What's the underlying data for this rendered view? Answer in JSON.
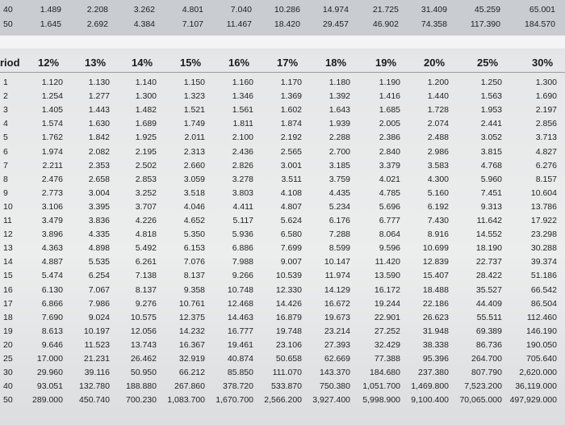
{
  "top_rows": [
    {
      "period": "40",
      "values": [
        "1.489",
        "2.208",
        "3.262",
        "4.801",
        "7.040",
        "10.286",
        "14.974",
        "21.725",
        "31.409",
        "45.259",
        "65.001"
      ]
    },
    {
      "period": "50",
      "values": [
        "1.645",
        "2.692",
        "4.384",
        "7.107",
        "11.467",
        "18.420",
        "29.457",
        "46.902",
        "74.358",
        "117.390",
        "184.570"
      ]
    }
  ],
  "header": {
    "period_label": "riod",
    "rates": [
      "12%",
      "13%",
      "14%",
      "15%",
      "16%",
      "17%",
      "18%",
      "19%",
      "20%",
      "25%",
      "30%"
    ]
  },
  "rows": [
    {
      "period": "1",
      "values": [
        "1.120",
        "1.130",
        "1.140",
        "1.150",
        "1.160",
        "1.170",
        "1.180",
        "1.190",
        "1.200",
        "1.250",
        "1.300"
      ]
    },
    {
      "period": "2",
      "values": [
        "1.254",
        "1.277",
        "1.300",
        "1.323",
        "1.346",
        "1.369",
        "1.392",
        "1.416",
        "1.440",
        "1.563",
        "1.690"
      ]
    },
    {
      "period": "3",
      "values": [
        "1.405",
        "1.443",
        "1.482",
        "1.521",
        "1.561",
        "1.602",
        "1.643",
        "1.685",
        "1.728",
        "1.953",
        "2.197"
      ]
    },
    {
      "period": "4",
      "values": [
        "1.574",
        "1.630",
        "1.689",
        "1.749",
        "1.811",
        "1.874",
        "1.939",
        "2.005",
        "2.074",
        "2.441",
        "2.856"
      ]
    },
    {
      "period": "5",
      "values": [
        "1.762",
        "1.842",
        "1.925",
        "2.011",
        "2.100",
        "2.192",
        "2.288",
        "2.386",
        "2.488",
        "3.052",
        "3.713"
      ]
    },
    {
      "period": "6",
      "values": [
        "1.974",
        "2.082",
        "2.195",
        "2.313",
        "2.436",
        "2.565",
        "2.700",
        "2.840",
        "2.986",
        "3.815",
        "4.827"
      ]
    },
    {
      "period": "7",
      "values": [
        "2.211",
        "2.353",
        "2.502",
        "2.660",
        "2.826",
        "3.001",
        "3.185",
        "3.379",
        "3.583",
        "4.768",
        "6.276"
      ]
    },
    {
      "period": "8",
      "values": [
        "2.476",
        "2.658",
        "2.853",
        "3.059",
        "3.278",
        "3.511",
        "3.759",
        "4.021",
        "4.300",
        "5.960",
        "8.157"
      ]
    },
    {
      "period": "9",
      "values": [
        "2.773",
        "3.004",
        "3.252",
        "3.518",
        "3.803",
        "4.108",
        "4.435",
        "4.785",
        "5.160",
        "7.451",
        "10.604"
      ]
    },
    {
      "period": "10",
      "values": [
        "3.106",
        "3.395",
        "3.707",
        "4.046",
        "4.411",
        "4.807",
        "5.234",
        "5.696",
        "6.192",
        "9.313",
        "13.786"
      ]
    },
    {
      "period": "11",
      "values": [
        "3.479",
        "3.836",
        "4.226",
        "4.652",
        "5.117",
        "5.624",
        "6.176",
        "6.777",
        "7.430",
        "11.642",
        "17.922"
      ]
    },
    {
      "period": "12",
      "values": [
        "3.896",
        "4.335",
        "4.818",
        "5.350",
        "5.936",
        "6.580",
        "7.288",
        "8.064",
        "8.916",
        "14.552",
        "23.298"
      ]
    },
    {
      "period": "13",
      "values": [
        "4.363",
        "4.898",
        "5.492",
        "6.153",
        "6.886",
        "7.699",
        "8.599",
        "9.596",
        "10.699",
        "18.190",
        "30.288"
      ]
    },
    {
      "period": "14",
      "values": [
        "4.887",
        "5.535",
        "6.261",
        "7.076",
        "7.988",
        "9.007",
        "10.147",
        "11.420",
        "12.839",
        "22.737",
        "39.374"
      ]
    },
    {
      "period": "15",
      "values": [
        "5.474",
        "6.254",
        "7.138",
        "8.137",
        "9.266",
        "10.539",
        "11.974",
        "13.590",
        "15.407",
        "28.422",
        "51.186"
      ]
    },
    {
      "period": "16",
      "values": [
        "6.130",
        "7.067",
        "8.137",
        "9.358",
        "10.748",
        "12.330",
        "14.129",
        "16.172",
        "18.488",
        "35.527",
        "66.542"
      ]
    },
    {
      "period": "17",
      "values": [
        "6.866",
        "7.986",
        "9.276",
        "10.761",
        "12.468",
        "14.426",
        "16.672",
        "19.244",
        "22.186",
        "44.409",
        "86.504"
      ]
    },
    {
      "period": "18",
      "values": [
        "7.690",
        "9.024",
        "10.575",
        "12.375",
        "14.463",
        "16.879",
        "19.673",
        "22.901",
        "26.623",
        "55.511",
        "112.460"
      ]
    },
    {
      "period": "19",
      "values": [
        "8.613",
        "10.197",
        "12.056",
        "14.232",
        "16.777",
        "19.748",
        "23.214",
        "27.252",
        "31.948",
        "69.389",
        "146.190"
      ]
    },
    {
      "period": "20",
      "values": [
        "9.646",
        "11.523",
        "13.743",
        "16.367",
        "19.461",
        "23.106",
        "27.393",
        "32.429",
        "38.338",
        "86.736",
        "190.050"
      ]
    },
    {
      "period": "25",
      "values": [
        "17.000",
        "21.231",
        "26.462",
        "32.919",
        "40.874",
        "50.658",
        "62.669",
        "77.388",
        "95.396",
        "264.700",
        "705.640"
      ]
    },
    {
      "period": "30",
      "values": [
        "29.960",
        "39.116",
        "50.950",
        "66.212",
        "85.850",
        "111.070",
        "143.370",
        "184.680",
        "237.380",
        "807.790",
        "2,620.000"
      ]
    },
    {
      "period": "40",
      "values": [
        "93.051",
        "132.780",
        "188.880",
        "267.860",
        "378.720",
        "533.870",
        "750.380",
        "1,051.700",
        "1,469.800",
        "7,523.200",
        "36,119.000"
      ]
    },
    {
      "period": "50",
      "values": [
        "289.000",
        "450.740",
        "700.230",
        "1,083.700",
        "1,670.700",
        "2,566.200",
        "3,927.400",
        "5,998.900",
        "9,100.400",
        "70,065.000",
        "497,929.000"
      ]
    }
  ]
}
